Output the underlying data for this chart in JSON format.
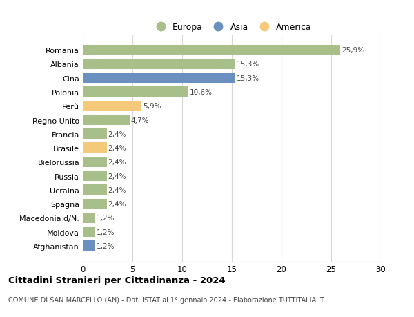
{
  "categories": [
    "Afghanistan",
    "Moldova",
    "Macedonia d/N.",
    "Spagna",
    "Ucraina",
    "Russia",
    "Bielorussia",
    "Brasile",
    "Francia",
    "Regno Unito",
    "Perù",
    "Polonia",
    "Cina",
    "Albania",
    "Romania"
  ],
  "values": [
    1.2,
    1.2,
    1.2,
    2.4,
    2.4,
    2.4,
    2.4,
    2.4,
    2.4,
    4.7,
    5.9,
    10.6,
    15.3,
    15.3,
    25.9
  ],
  "bar_colors": [
    "#6b8fbe",
    "#a8bf8a",
    "#a8bf8a",
    "#a8bf8a",
    "#a8bf8a",
    "#a8bf8a",
    "#a8bf8a",
    "#f5c97a",
    "#a8bf8a",
    "#a8bf8a",
    "#f5c97a",
    "#a8bf8a",
    "#6b8fbe",
    "#a8bf8a",
    "#a8bf8a"
  ],
  "labels": [
    "1,2%",
    "1,2%",
    "1,2%",
    "2,4%",
    "2,4%",
    "2,4%",
    "2,4%",
    "2,4%",
    "2,4%",
    "4,7%",
    "5,9%",
    "10,6%",
    "15,3%",
    "15,3%",
    "25,9%"
  ],
  "legend": [
    {
      "label": "Europa",
      "color": "#a8bf8a"
    },
    {
      "label": "Asia",
      "color": "#6b8fbe"
    },
    {
      "label": "America",
      "color": "#f5c97a"
    }
  ],
  "xlim": [
    0,
    30
  ],
  "xticks": [
    0,
    5,
    10,
    15,
    20,
    25,
    30
  ],
  "title": "Cittadini Stranieri per Cittadinanza - 2024",
  "subtitle": "COMUNE DI SAN MARCELLO (AN) - Dati ISTAT al 1° gennaio 2024 - Elaborazione TUTTITALIA.IT",
  "background_color": "#ffffff",
  "grid_color": "#d8d8d8",
  "bar_height": 0.75,
  "figsize": [
    6.0,
    4.6
  ],
  "dpi": 100
}
